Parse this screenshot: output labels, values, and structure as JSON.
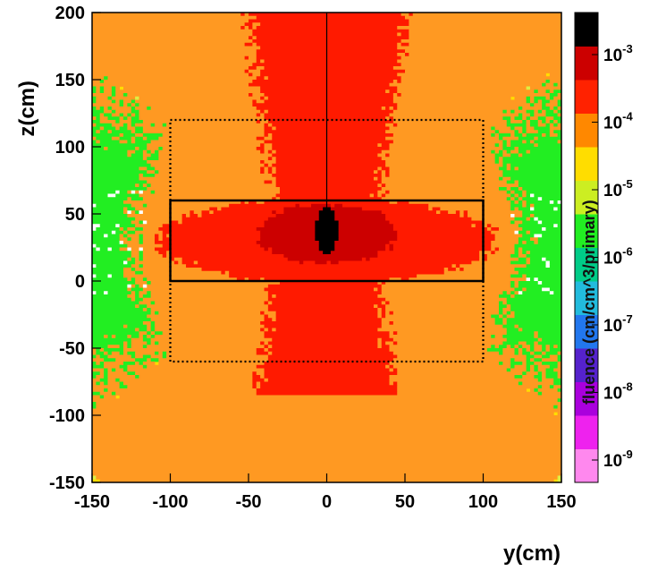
{
  "chart_data": {
    "type": "heatmap",
    "title": "",
    "xlabel": "y(cm)",
    "ylabel": "z(cm)",
    "xlim": [
      -150,
      150
    ],
    "ylim": [
      -150,
      200
    ],
    "x_ticks": [
      -150,
      -100,
      -50,
      0,
      50,
      100,
      150
    ],
    "y_ticks": [
      -150,
      -100,
      -50,
      0,
      50,
      100,
      150,
      200
    ],
    "colorbar": {
      "label": "fluence (cm/cm^3/primary)",
      "scale": "log",
      "range": [
        1e-09,
        0.001
      ],
      "ticks": [
        {
          "base": "10",
          "exp": "-9",
          "value": 1e-09
        },
        {
          "base": "10",
          "exp": "-8",
          "value": 1e-08
        },
        {
          "base": "10",
          "exp": "-7",
          "value": 1e-07
        },
        {
          "base": "10",
          "exp": "-6",
          "value": 1e-06
        },
        {
          "base": "10",
          "exp": "-5",
          "value": 1e-05
        },
        {
          "base": "10",
          "exp": "-4",
          "value": 0.0001
        },
        {
          "base": "10",
          "exp": "-3",
          "value": 0.001
        }
      ],
      "colors": [
        "#ff88ee",
        "#ee22ee",
        "#aa00dd",
        "#5522cc",
        "#2277ee",
        "#22bbdd",
        "#00cc88",
        "#22ee22",
        "#ccee22",
        "#ffdd00",
        "#ff8800",
        "#ff2200",
        "#cc0000",
        "#000000"
      ]
    },
    "regions": [
      {
        "name": "",
        "y_range": [
          -100,
          100
        ],
        "z_range": [
          0,
          60
        ],
        "style": "solid"
      },
      {
        "name": "",
        "y_range": [
          -100,
          100
        ],
        "z_range": [
          -60,
          120
        ],
        "style": "dotted"
      }
    ],
    "beam_line": {
      "y": 0,
      "z_range": [
        45,
        200
      ]
    },
    "field_colors": {
      "background": "#ffdd00",
      "light_yellow": "#ddee44",
      "green": "#22ee22",
      "orange": "#ff9922",
      "red": "#ff1a00",
      "dark_red": "#cc0000",
      "black": "#000000",
      "white": "#ffffff"
    }
  }
}
